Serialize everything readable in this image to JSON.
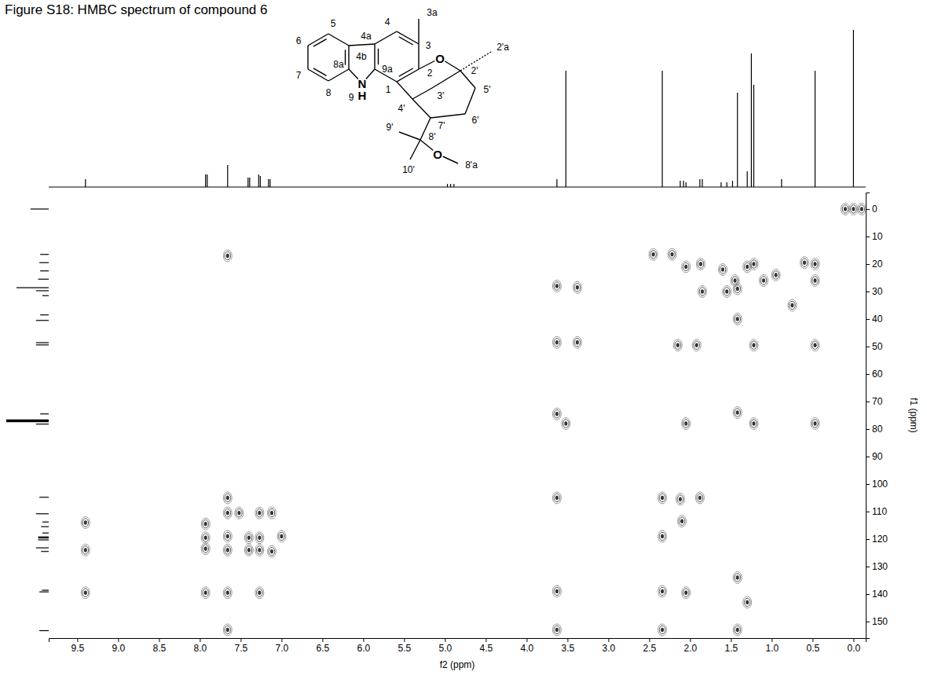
{
  "chart_data": {
    "type": "scatter",
    "title": "Figure S18: HMBC spectrum of compound 6",
    "x_label": "f2 (ppm)",
    "y_label": "f1 (ppm)",
    "xlim": [
      9.85,
      -0.15
    ],
    "xticks": [
      9.5,
      {
        "value": 9,
        "label": "9.0"
      },
      8.5,
      {
        "value": 8,
        "label": "8.0"
      },
      7.5,
      {
        "value": 7,
        "label": "7.0"
      },
      6.5,
      {
        "value": 6,
        "label": "6.0"
      },
      5.5,
      {
        "value": 5,
        "label": "5.0"
      },
      4.5,
      {
        "value": 4,
        "label": "4.0"
      },
      3.5,
      {
        "value": 3,
        "label": "3.0"
      },
      2.5,
      {
        "value": 2,
        "label": "2.0"
      },
      1.5,
      {
        "value": 1,
        "label": "1.0"
      },
      0.5,
      {
        "value": 0,
        "label": "0.0"
      }
    ],
    "ylim": [
      156,
      -6
    ],
    "yticks": [
      0,
      10,
      20,
      30,
      40,
      50,
      60,
      70,
      80,
      90,
      100,
      110,
      120,
      130,
      140,
      150
    ],
    "color": "#555555",
    "x": [
      9.4,
      9.4,
      9.4,
      7.93,
      7.93,
      7.93,
      7.93,
      7.66,
      7.66,
      7.66,
      7.66,
      7.66,
      7.66,
      7.66,
      7.52,
      7.4,
      7.4,
      7.27,
      7.27,
      7.27,
      7.27,
      7.12,
      7.12,
      7.0,
      3.63,
      3.63,
      3.63,
      3.63,
      3.63,
      3.63,
      3.38,
      3.38,
      3.52,
      2.45,
      2.34,
      2.34,
      2.34,
      2.34,
      2.22,
      2.12,
      2.1,
      2.05,
      2.15,
      2.05,
      2.05,
      1.88,
      1.92,
      1.87,
      1.85,
      1.6,
      1.55,
      1.45,
      1.42,
      1.42,
      1.42,
      1.42,
      1.42,
      1.3,
      1.3,
      1.22,
      1.22,
      1.22,
      1.1,
      0.95,
      0.75,
      0.6,
      0.47,
      0.47,
      0.47,
      0.47,
      0.1,
      0.0,
      -0.1
    ],
    "values": [
      114,
      124,
      139.5,
      114.5,
      119.5,
      123.5,
      139.5,
      17,
      105,
      110.5,
      119,
      124,
      139.5,
      153,
      110.5,
      119.5,
      124,
      110.5,
      119.5,
      124,
      139.5,
      110.5,
      124.5,
      119,
      28,
      48.5,
      74.5,
      105,
      139,
      153,
      28.5,
      48.5,
      78,
      16.5,
      105,
      119,
      139,
      153,
      16.5,
      105.5,
      113.5,
      139.5,
      49.5,
      78,
      21,
      105,
      49.5,
      20,
      30,
      22,
      30,
      26,
      29,
      40,
      74,
      134,
      153,
      21,
      143,
      20,
      49.5,
      78,
      26,
      24,
      35,
      19.5,
      20,
      26,
      49.5,
      78,
      0,
      0,
      0
    ],
    "proton_spectrum": {
      "color": "#000000",
      "lim": [
        0,
        100
      ],
      "x": [
        9.4,
        7.93,
        7.91,
        7.66,
        7.41,
        7.39,
        7.28,
        7.26,
        7.16,
        7.14,
        4.97,
        4.93,
        4.89,
        3.63,
        3.52,
        2.34,
        2.12,
        2.08,
        2.05,
        1.88,
        1.85,
        1.62,
        1.55,
        1.48,
        1.42,
        1.3,
        1.25,
        1.22,
        0.88,
        0.47,
        0.0
      ],
      "values": [
        5,
        8,
        8,
        14,
        6,
        6,
        8,
        7,
        5,
        5,
        2,
        2,
        2,
        5,
        74,
        74,
        4,
        4,
        3,
        5,
        5,
        3,
        3,
        4,
        60,
        10,
        85,
        65,
        5,
        74,
        100
      ]
    },
    "carbon_spectrum": {
      "color": "#000000",
      "lim": [
        0,
        100
      ],
      "x": [
        0.0,
        16.5,
        19.5,
        22.5,
        25.5,
        28.6,
        29.7,
        31.5,
        38.5,
        40.5,
        48.6,
        49.4,
        74.5,
        76.7,
        77.0,
        77.3,
        78.2,
        104.8,
        110.8,
        113.8,
        115.5,
        117.8,
        119.2,
        119.6,
        120.3,
        123.2,
        124.5,
        138.6,
        139.2,
        153.3
      ],
      "values": [
        43,
        20,
        22,
        20,
        25,
        76,
        30,
        15,
        20,
        30,
        30,
        30,
        20,
        100,
        100,
        100,
        30,
        22,
        30,
        15,
        18,
        15,
        25,
        25,
        25,
        30,
        18,
        16,
        22,
        22
      ]
    }
  },
  "structure": {
    "labels": [
      "3a",
      "4",
      "5",
      "6",
      "7",
      "8",
      "4a",
      "4b",
      "9a",
      "8a",
      "N",
      "H",
      "9",
      "3",
      "O",
      "2",
      "2'a",
      "2'",
      "5'",
      "3'",
      "4'",
      "1",
      "6'",
      "7'",
      "8'",
      "9'",
      "10'",
      "O",
      "8'a"
    ]
  }
}
